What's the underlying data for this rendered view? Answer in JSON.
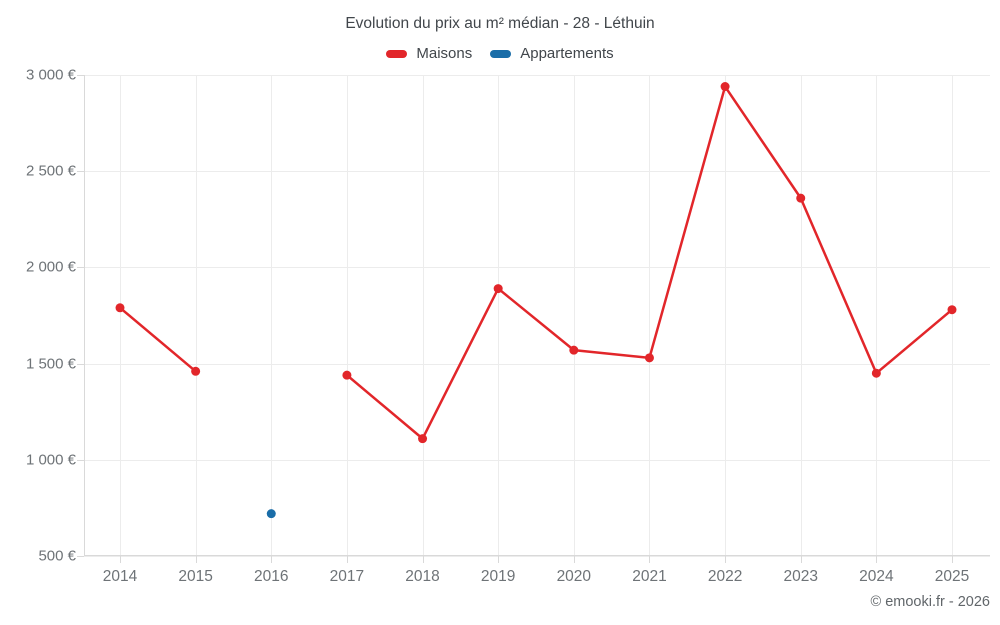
{
  "title": "Evolution du prix au m² médian - 28 - Léthuin",
  "legend": [
    {
      "label": "Maisons",
      "color": "#e2262a"
    },
    {
      "label": "Appartements",
      "color": "#1a6da8"
    }
  ],
  "copyright": "© emooki.fr - 2026",
  "colors": {
    "grid": "#ececec",
    "axis": "#d9d9d9",
    "background": "#ffffff",
    "title_text": "#41464b",
    "tick_text": "#6e7377"
  },
  "chart_data": {
    "type": "line",
    "x": [
      "2014",
      "2015",
      "2016",
      "2017",
      "2018",
      "2019",
      "2020",
      "2021",
      "2022",
      "2023",
      "2024",
      "2025"
    ],
    "series": [
      {
        "name": "Maisons",
        "color": "#e2262a",
        "values": [
          1790,
          1460,
          null,
          1440,
          1110,
          1890,
          1570,
          1530,
          2940,
          2360,
          1450,
          1780
        ]
      },
      {
        "name": "Appartements",
        "color": "#1a6da8",
        "values": [
          null,
          null,
          720,
          null,
          null,
          null,
          null,
          null,
          null,
          null,
          null,
          null
        ]
      }
    ],
    "ylim": [
      500,
      3000
    ],
    "y_ticks": [
      {
        "value": 500,
        "label": "500 €"
      },
      {
        "value": 1000,
        "label": "1 000 €"
      },
      {
        "value": 1500,
        "label": "1 500 €"
      },
      {
        "value": 2000,
        "label": "2 000 €"
      },
      {
        "value": 2500,
        "label": "2 500 €"
      },
      {
        "value": 3000,
        "label": "3 000 €"
      }
    ],
    "grid": true,
    "legend_position": "top",
    "xlabel": "",
    "ylabel": ""
  }
}
